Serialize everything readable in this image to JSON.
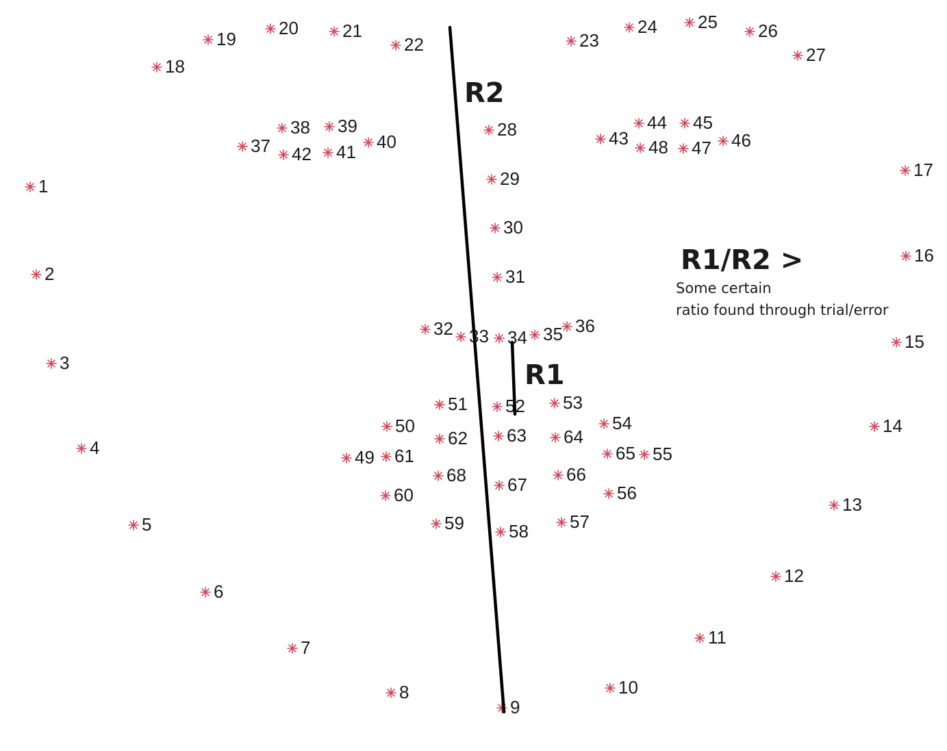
{
  "landmark_labels": [
    "1",
    "2",
    "3",
    "4",
    "5",
    "6",
    "7",
    "8",
    "9",
    "10",
    "11",
    "12",
    "13",
    "14",
    "15",
    "16",
    "17",
    "18",
    "19",
    "20",
    "21",
    "22",
    "23",
    "24",
    "25",
    "26",
    "27",
    "28",
    "29",
    "30",
    "31",
    "32",
    "33",
    "34",
    "35",
    "36",
    "37",
    "38",
    "39",
    "40",
    "41",
    "42",
    "43",
    "44",
    "45",
    "46",
    "47",
    "48",
    "49",
    "50",
    "51",
    "52",
    "53",
    "54",
    "55",
    "56",
    "57",
    "58",
    "59",
    "60",
    "61",
    "62",
    "63",
    "64",
    "65",
    "66",
    "67",
    "68"
  ],
  "r2_label": "R2",
  "r1_label": "R1",
  "ratio_text": "R1/R2 >",
  "note_line_1": "Some certain",
  "note_line_2": "ratio found through trial/error",
  "colors": {
    "marker": "#d6455a",
    "line": "#000000",
    "text": "#1a1a1a"
  }
}
